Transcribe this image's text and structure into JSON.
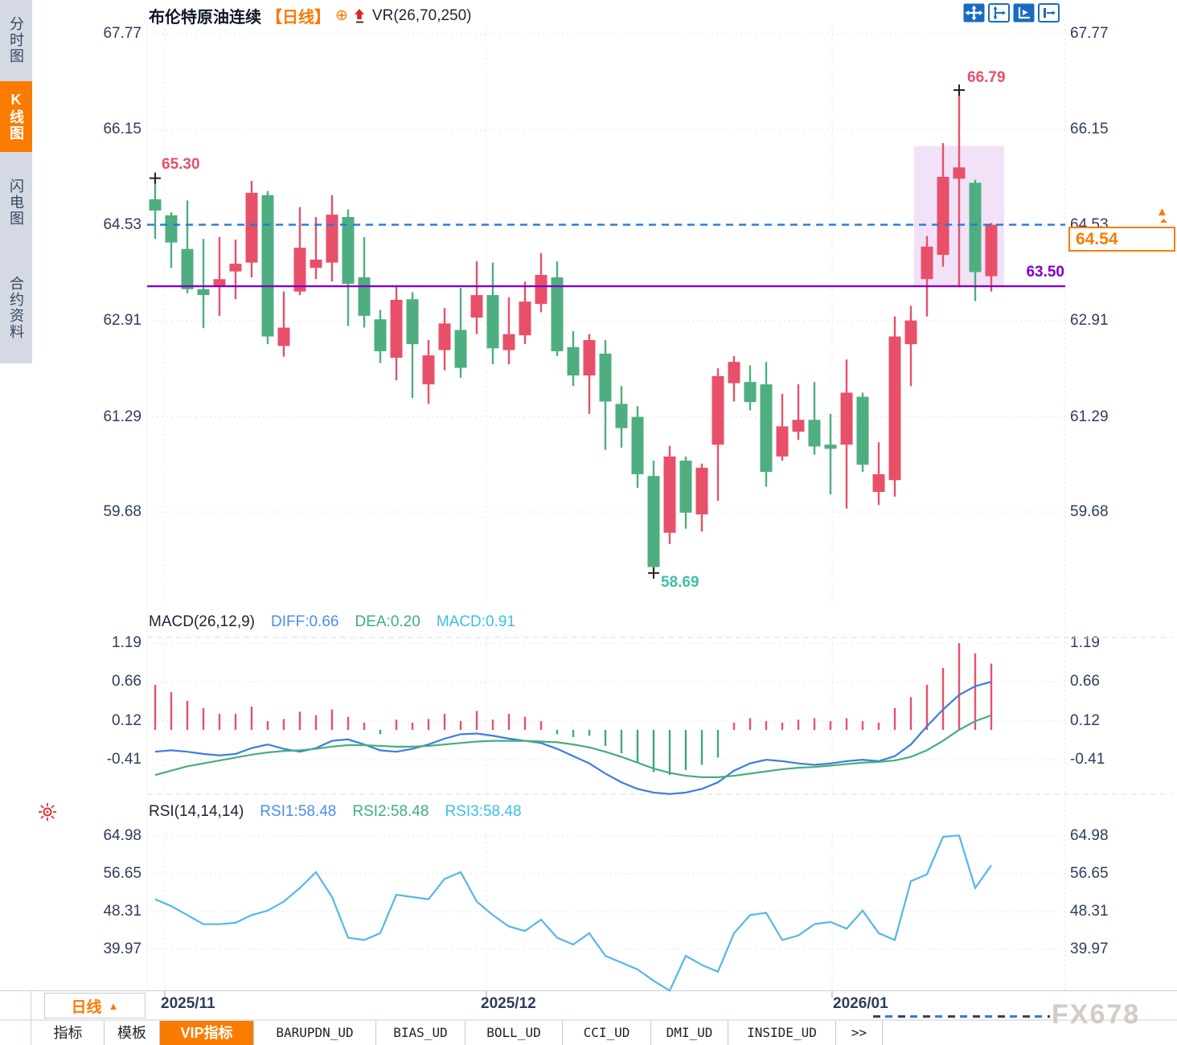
{
  "window": {
    "watermark": "FX678"
  },
  "sidebar": {
    "tabs": [
      {
        "label": "分时图",
        "active": false
      },
      {
        "label": "K线图",
        "active": true
      },
      {
        "label": "闪电图",
        "active": false
      },
      {
        "label": "合约资料",
        "active": false
      }
    ]
  },
  "header": {
    "symbol": "布伦特原油连续",
    "period": "【日线】",
    "link_icon": "⊕",
    "indicator": "VR(26,70,250)"
  },
  "toolbar": {
    "icons": [
      "pan-move-icon",
      "axis-adjust-icon",
      "auto-fit-icon",
      "pane-shift-icon"
    ]
  },
  "macd_panel": {
    "title": "MACD(26,12,9)",
    "diff": "DIFF:0.66",
    "dea": "DEA:0.20",
    "macd": "MACD:0.91"
  },
  "rsi_panel": {
    "title": "RSI(14,14,14)",
    "rsi1": "RSI1:58.48",
    "rsi2": "RSI2:58.48",
    "rsi3": "RSI3:58.48"
  },
  "xaxis": {
    "months": [
      "2025/11",
      "2025/12",
      "2026/01"
    ],
    "period_button": {
      "label": "日线",
      "arrow": "▲"
    }
  },
  "bottom_tabs": {
    "items": [
      {
        "label": "指标",
        "active": false
      },
      {
        "label": "模板",
        "active": false
      },
      {
        "label": "VIP指标",
        "active": true
      },
      {
        "label": "BARUPDN_UD",
        "active": false
      },
      {
        "label": "BIAS_UD",
        "active": false
      },
      {
        "label": "BOLL_UD",
        "active": false
      },
      {
        "label": "CCI_UD",
        "active": false
      },
      {
        "label": "DMI_UD",
        "active": false
      },
      {
        "label": "INSIDE_UD",
        "active": false
      },
      {
        "label": ">>",
        "active": false
      }
    ]
  },
  "colors": {
    "up": "#e8506a",
    "down": "#4fae7f",
    "accent_orange": "#f97b00",
    "dashed_price_line": "#1e7be0",
    "support_line": "#8200c8",
    "diff_line": "#3b7de0",
    "dea_line": "#46ae7c",
    "rsi_line": "#55b7e5",
    "axis_text": "#2e3d5c",
    "low_label": "#3fbfa8",
    "icon_blue": "#1a6bc0"
  },
  "chart_data": [
    {
      "type": "candlestick",
      "title": "布伦特原油连续 日线",
      "ylim": [
        58.4,
        67.77
      ],
      "yticks": [
        "67.77",
        "66.15",
        "64.53",
        "62.91",
        "61.29",
        "59.68"
      ],
      "x_labels": [
        "2025/11",
        "2025/12",
        "2026/01"
      ],
      "up_color": "#e8506a",
      "down_color": "#4fae7f",
      "candles": [
        [
          64.97,
          65.3,
          64.3,
          64.78
        ],
        [
          64.7,
          64.75,
          63.81,
          64.24
        ],
        [
          64.13,
          64.95,
          63.38,
          63.45
        ],
        [
          63.45,
          64.3,
          62.79,
          63.35
        ],
        [
          63.51,
          64.33,
          63.0,
          63.62
        ],
        [
          63.75,
          64.29,
          63.28,
          63.88
        ],
        [
          63.9,
          65.28,
          63.65,
          65.08
        ],
        [
          65.04,
          65.11,
          62.52,
          62.65
        ],
        [
          62.49,
          63.41,
          62.31,
          62.8
        ],
        [
          63.41,
          64.84,
          63.35,
          64.15
        ],
        [
          63.81,
          64.67,
          63.62,
          63.95
        ],
        [
          63.9,
          65.04,
          63.58,
          64.71
        ],
        [
          64.67,
          64.8,
          62.83,
          63.54
        ],
        [
          63.65,
          64.33,
          62.8,
          63.0
        ],
        [
          62.94,
          63.1,
          62.2,
          62.4
        ],
        [
          62.29,
          63.49,
          61.91,
          63.27
        ],
        [
          63.28,
          63.4,
          61.61,
          62.52
        ],
        [
          61.84,
          62.59,
          61.51,
          62.33
        ],
        [
          62.42,
          63.13,
          62.08,
          62.87
        ],
        [
          62.76,
          63.47,
          61.95,
          62.12
        ],
        [
          62.97,
          63.92,
          62.69,
          63.35
        ],
        [
          63.35,
          63.9,
          62.18,
          62.45
        ],
        [
          62.42,
          63.31,
          62.18,
          62.69
        ],
        [
          62.67,
          63.58,
          62.52,
          63.24
        ],
        [
          63.2,
          64.06,
          63.06,
          63.69
        ],
        [
          63.65,
          63.92,
          62.32,
          62.4
        ],
        [
          62.47,
          62.74,
          61.81,
          61.99
        ],
        [
          61.99,
          62.69,
          61.34,
          62.59
        ],
        [
          62.36,
          62.59,
          60.73,
          61.55
        ],
        [
          61.51,
          61.81,
          60.77,
          61.1
        ],
        [
          61.29,
          61.47,
          60.09,
          60.32
        ],
        [
          60.29,
          60.55,
          58.69,
          58.75
        ],
        [
          59.33,
          60.8,
          59.14,
          60.62
        ],
        [
          60.55,
          60.62,
          59.4,
          59.67
        ],
        [
          59.64,
          60.5,
          59.35,
          60.43
        ],
        [
          60.82,
          62.11,
          59.87,
          61.98
        ],
        [
          61.86,
          62.32,
          61.55,
          62.22
        ],
        [
          61.88,
          62.16,
          61.4,
          61.54
        ],
        [
          61.84,
          62.22,
          60.11,
          60.36
        ],
        [
          60.62,
          61.68,
          60.55,
          61.13
        ],
        [
          61.04,
          61.84,
          60.9,
          61.24
        ],
        [
          61.24,
          61.88,
          60.65,
          60.79
        ],
        [
          60.82,
          61.34,
          59.98,
          60.75
        ],
        [
          60.82,
          62.26,
          59.74,
          61.7
        ],
        [
          61.63,
          61.7,
          60.36,
          60.48
        ],
        [
          60.02,
          60.86,
          59.8,
          60.32
        ],
        [
          60.22,
          62.99,
          59.94,
          62.65
        ],
        [
          62.52,
          63.17,
          61.81,
          62.92
        ],
        [
          63.62,
          64.35,
          62.99,
          64.17
        ],
        [
          64.03,
          65.92,
          63.83,
          65.35
        ],
        [
          65.32,
          66.79,
          63.48,
          65.51
        ],
        [
          65.25,
          65.3,
          63.25,
          63.74
        ],
        [
          63.67,
          64.57,
          63.41,
          64.54
        ]
      ],
      "hlines": [
        {
          "value": 64.54,
          "label": "64.54",
          "style": "dashed",
          "color": "#1e7be0"
        },
        {
          "value": 63.5,
          "label": "63.50",
          "style": "solid",
          "color": "#8200c8"
        }
      ],
      "annotations": [
        {
          "index": 0,
          "type": "high",
          "text": "65.30"
        },
        {
          "index": 50,
          "type": "high",
          "text": "66.79"
        },
        {
          "index": 31,
          "type": "low",
          "text": "58.69"
        }
      ],
      "highlight": {
        "from_index": 48,
        "to_index": 52,
        "top": 65.87,
        "bottom": 63.5
      }
    },
    {
      "type": "bar",
      "name": "MACD(26,12,9)",
      "yticks": [
        "1.19",
        "0.66",
        "0.12",
        "-0.41"
      ],
      "last_values": {
        "DIFF": 0.66,
        "DEA": 0.2,
        "MACD": 0.91
      },
      "hist": [
        0.62,
        0.52,
        0.4,
        0.3,
        0.22,
        0.22,
        0.32,
        0.12,
        0.15,
        0.25,
        0.2,
        0.28,
        0.18,
        0.1,
        -0.06,
        0.14,
        0.1,
        0.15,
        0.22,
        0.12,
        0.26,
        0.14,
        0.22,
        0.18,
        0.12,
        -0.06,
        -0.1,
        -0.08,
        -0.22,
        -0.32,
        -0.45,
        -0.58,
        -0.62,
        -0.55,
        -0.48,
        -0.38,
        0.1,
        0.16,
        0.12,
        0.1,
        0.14,
        0.16,
        0.12,
        0.16,
        0.12,
        0.1,
        0.3,
        0.45,
        0.62,
        0.85,
        1.19,
        1.05,
        0.91
      ],
      "diff": [
        -0.3,
        -0.28,
        -0.3,
        -0.33,
        -0.35,
        -0.33,
        -0.25,
        -0.2,
        -0.26,
        -0.3,
        -0.25,
        -0.15,
        -0.13,
        -0.2,
        -0.28,
        -0.3,
        -0.26,
        -0.2,
        -0.12,
        -0.06,
        -0.05,
        -0.08,
        -0.12,
        -0.15,
        -0.18,
        -0.26,
        -0.36,
        -0.46,
        -0.6,
        -0.72,
        -0.81,
        -0.86,
        -0.88,
        -0.86,
        -0.81,
        -0.72,
        -0.56,
        -0.46,
        -0.41,
        -0.43,
        -0.46,
        -0.48,
        -0.46,
        -0.43,
        -0.41,
        -0.43,
        -0.36,
        -0.2,
        0.05,
        0.28,
        0.48,
        0.6,
        0.66
      ],
      "dea": [
        -0.62,
        -0.56,
        -0.5,
        -0.46,
        -0.42,
        -0.38,
        -0.34,
        -0.31,
        -0.29,
        -0.28,
        -0.26,
        -0.23,
        -0.21,
        -0.21,
        -0.22,
        -0.23,
        -0.23,
        -0.22,
        -0.2,
        -0.18,
        -0.16,
        -0.15,
        -0.15,
        -0.15,
        -0.16,
        -0.17,
        -0.2,
        -0.24,
        -0.3,
        -0.37,
        -0.45,
        -0.53,
        -0.59,
        -0.63,
        -0.65,
        -0.65,
        -0.63,
        -0.6,
        -0.57,
        -0.54,
        -0.52,
        -0.51,
        -0.49,
        -0.47,
        -0.45,
        -0.44,
        -0.42,
        -0.37,
        -0.28,
        -0.15,
        0.0,
        0.12,
        0.2
      ]
    },
    {
      "type": "line",
      "name": "RSI(14,14,14)",
      "yticks": [
        "64.98",
        "56.65",
        "48.31",
        "39.97"
      ],
      "last_values": {
        "RSI1": 58.48,
        "RSI2": 58.48,
        "RSI3": 58.48
      },
      "values": [
        51.0,
        49.5,
        47.5,
        45.5,
        45.5,
        45.8,
        47.5,
        48.5,
        50.5,
        53.5,
        57.0,
        51.5,
        42.5,
        42.0,
        43.5,
        52.0,
        51.5,
        51.0,
        55.5,
        57.0,
        50.5,
        47.5,
        45.0,
        44.0,
        46.5,
        42.5,
        41.0,
        43.5,
        38.5,
        37.0,
        35.5,
        33.0,
        30.8,
        38.5,
        36.5,
        35.0,
        43.5,
        47.5,
        48.0,
        42.0,
        43.0,
        45.5,
        46.0,
        44.5,
        48.5,
        43.5,
        42.0,
        55.0,
        56.5,
        64.8,
        65.1,
        53.5,
        58.5
      ]
    }
  ]
}
